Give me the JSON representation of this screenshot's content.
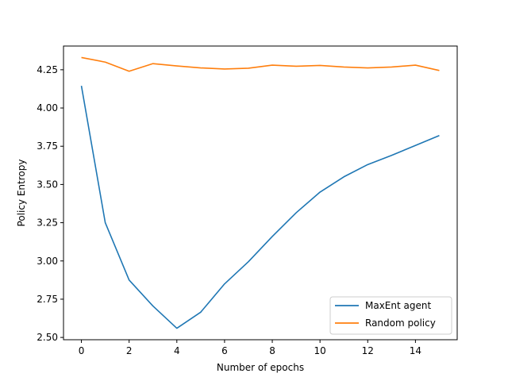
{
  "chart_data": {
    "type": "line",
    "xlabel": "Number of epochs",
    "ylabel": "Policy Entropy",
    "xlim": [
      -0.75,
      15.75
    ],
    "ylim": [
      2.485,
      4.405
    ],
    "xticks": [
      0,
      2,
      4,
      6,
      8,
      10,
      12,
      14
    ],
    "xtick_labels": [
      "0",
      "2",
      "4",
      "6",
      "8",
      "10",
      "12",
      "14"
    ],
    "yticks": [
      2.5,
      2.75,
      3.0,
      3.25,
      3.5,
      3.75,
      4.0,
      4.25
    ],
    "ytick_labels": [
      "2.50",
      "2.75",
      "3.00",
      "3.25",
      "3.50",
      "3.75",
      "4.00",
      "4.25"
    ],
    "grid": false,
    "legend_position": "lower-right",
    "x": [
      0,
      1,
      2,
      3,
      4,
      5,
      6,
      7,
      8,
      9,
      10,
      11,
      12,
      13,
      14,
      15
    ],
    "series": [
      {
        "name": "MaxEnt agent",
        "color": "#1f77b4",
        "values": [
          4.145,
          3.25,
          2.875,
          2.705,
          2.56,
          2.665,
          2.85,
          2.995,
          3.16,
          3.315,
          3.45,
          3.55,
          3.63,
          3.69,
          3.755,
          3.82
        ]
      },
      {
        "name": "Random policy",
        "color": "#ff7f0e",
        "values": [
          4.33,
          4.3,
          4.24,
          4.29,
          4.275,
          4.262,
          4.255,
          4.26,
          4.28,
          4.273,
          4.278,
          4.268,
          4.262,
          4.268,
          4.28,
          4.245
        ]
      }
    ]
  }
}
